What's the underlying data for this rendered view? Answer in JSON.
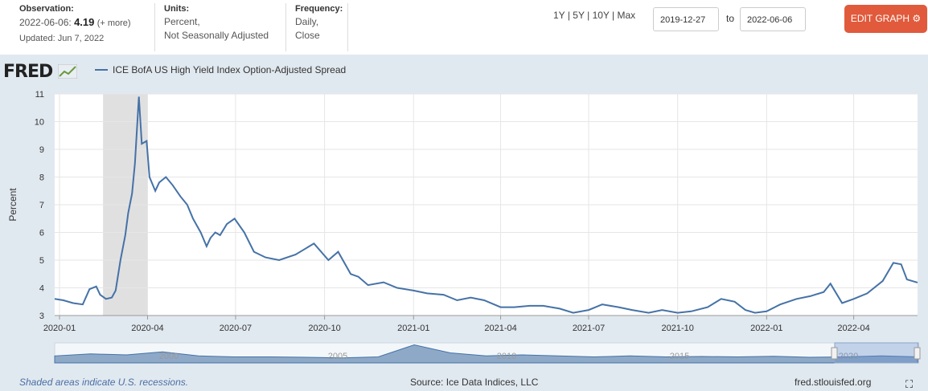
{
  "meta": {
    "observation_label": "Observation:",
    "observation_date": "2022-06-06:",
    "observation_value": "4.19",
    "observation_more": "(+ more)",
    "updated": "Updated: Jun 7, 2022",
    "units_label": "Units:",
    "units_line1": "Percent,",
    "units_line2": "Not Seasonally Adjusted",
    "frequency_label": "Frequency:",
    "frequency_line1": "Daily,",
    "frequency_line2": "Close"
  },
  "ranges": {
    "r1y": "1Y",
    "r5y": "5Y",
    "r10y": "10Y",
    "rmax": "Max",
    "sep": "|"
  },
  "dates": {
    "start": "2019-12-27",
    "to": "to",
    "end": "2022-06-06"
  },
  "edit_label": "EDIT GRAPH",
  "logo": "FRED",
  "footer": {
    "note": "Shaded areas indicate U.S. recessions.",
    "source": "Source: Ice Data Indices, LLC",
    "site": "fred.stlouisfed.org"
  },
  "colors": {
    "series": "#4572a7",
    "recession": "#e0e0e0",
    "brand": "#e05a3b"
  },
  "navigator_labels": [
    "2000",
    "2005",
    "2010",
    "2015",
    "2020"
  ],
  "chart_data": {
    "type": "line",
    "ylabel": "Percent",
    "ylim": [
      3,
      11
    ],
    "yticks": [
      3,
      4,
      5,
      6,
      7,
      8,
      9,
      10,
      11
    ],
    "xticks": [
      "2020-01",
      "2020-04",
      "2020-07",
      "2020-10",
      "2021-01",
      "2021-04",
      "2021-07",
      "2021-10",
      "2022-01",
      "2022-04"
    ],
    "xlim": [
      "2019-12-27",
      "2022-06-06"
    ],
    "recession": [
      "2020-02-15",
      "2020-04-01"
    ],
    "grid": true,
    "legend_position": "top-left",
    "series": [
      {
        "name": "ICE BofA US High Yield Index Option-Adjusted Spread",
        "x": [
          "2019-12-27",
          "2020-01-05",
          "2020-01-15",
          "2020-01-25",
          "2020-02-01",
          "2020-02-08",
          "2020-02-12",
          "2020-02-18",
          "2020-02-24",
          "2020-02-28",
          "2020-03-04",
          "2020-03-09",
          "2020-03-12",
          "2020-03-16",
          "2020-03-19",
          "2020-03-23",
          "2020-03-26",
          "2020-03-31",
          "2020-04-03",
          "2020-04-09",
          "2020-04-13",
          "2020-04-20",
          "2020-04-27",
          "2020-05-05",
          "2020-05-12",
          "2020-05-18",
          "2020-05-26",
          "2020-06-01",
          "2020-06-05",
          "2020-06-10",
          "2020-06-15",
          "2020-06-22",
          "2020-06-30",
          "2020-07-10",
          "2020-07-20",
          "2020-08-01",
          "2020-08-15",
          "2020-09-01",
          "2020-09-20",
          "2020-10-05",
          "2020-10-15",
          "2020-10-28",
          "2020-11-05",
          "2020-11-15",
          "2020-12-01",
          "2020-12-15",
          "2021-01-01",
          "2021-01-15",
          "2021-02-01",
          "2021-02-15",
          "2021-03-01",
          "2021-03-15",
          "2021-04-01",
          "2021-04-15",
          "2021-05-01",
          "2021-05-15",
          "2021-06-01",
          "2021-06-15",
          "2021-07-01",
          "2021-07-15",
          "2021-08-01",
          "2021-08-15",
          "2021-09-01",
          "2021-09-15",
          "2021-10-01",
          "2021-10-15",
          "2021-11-01",
          "2021-11-15",
          "2021-11-29",
          "2021-12-10",
          "2021-12-20",
          "2022-01-01",
          "2022-01-15",
          "2022-02-01",
          "2022-02-15",
          "2022-03-01",
          "2022-03-08",
          "2022-03-20",
          "2022-04-01",
          "2022-04-15",
          "2022-05-01",
          "2022-05-12",
          "2022-05-20",
          "2022-05-26",
          "2022-06-06"
        ],
        "values": [
          3.6,
          3.55,
          3.45,
          3.4,
          3.95,
          4.05,
          3.75,
          3.6,
          3.65,
          3.9,
          5.0,
          5.9,
          6.7,
          7.4,
          8.5,
          10.9,
          9.2,
          9.3,
          8.0,
          7.5,
          7.8,
          8.0,
          7.7,
          7.3,
          7.0,
          6.5,
          6.0,
          5.5,
          5.8,
          6.0,
          5.9,
          6.3,
          6.5,
          6.0,
          5.3,
          5.1,
          5.0,
          5.2,
          5.6,
          5.0,
          5.3,
          4.5,
          4.4,
          4.1,
          4.2,
          4.0,
          3.9,
          3.8,
          3.75,
          3.55,
          3.65,
          3.55,
          3.3,
          3.3,
          3.35,
          3.35,
          3.25,
          3.1,
          3.2,
          3.4,
          3.3,
          3.2,
          3.1,
          3.2,
          3.1,
          3.15,
          3.3,
          3.6,
          3.5,
          3.2,
          3.1,
          3.15,
          3.4,
          3.6,
          3.7,
          3.85,
          4.15,
          3.45,
          3.6,
          3.8,
          4.25,
          4.9,
          4.85,
          4.3,
          4.19
        ]
      }
    ]
  }
}
